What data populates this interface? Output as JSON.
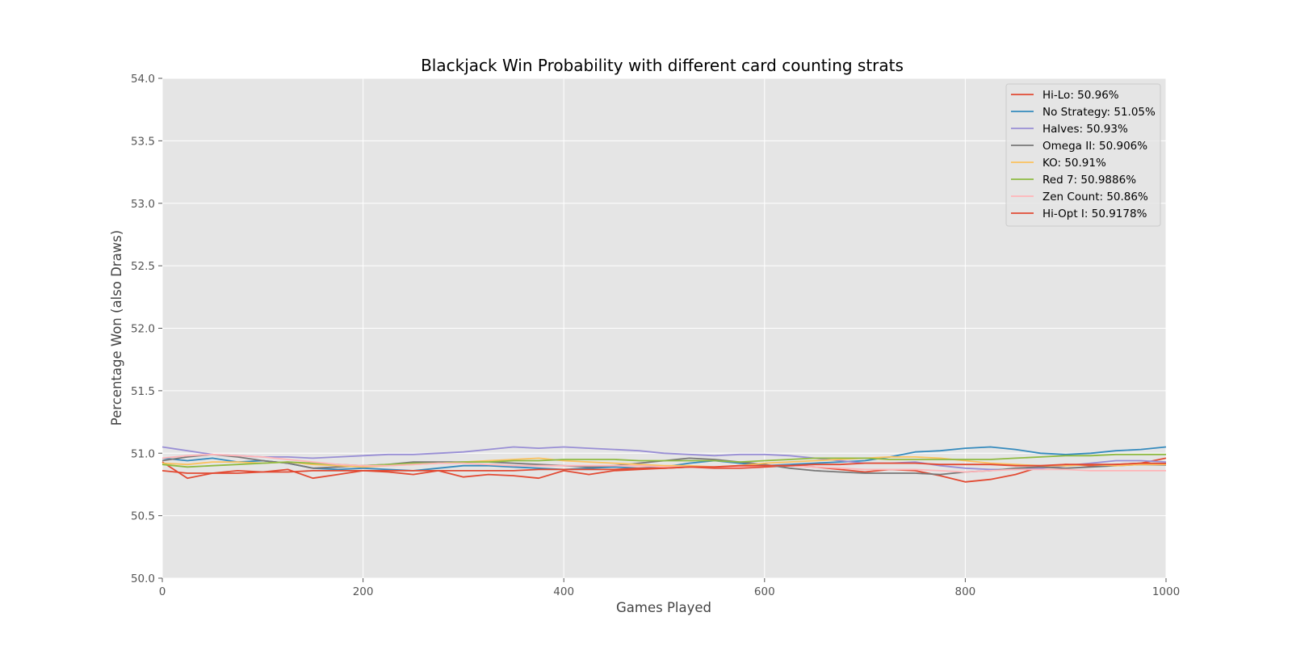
{
  "chart_data": {
    "type": "line",
    "title": "Blackjack Win Probability with different card counting strats",
    "xlabel": "Games Played",
    "ylabel": "Percentage Won (also Draws)",
    "xlim": [
      0,
      1000
    ],
    "ylim": [
      50.0,
      54.0
    ],
    "x_ticks": [
      "0",
      "200",
      "400",
      "600",
      "800",
      "1000"
    ],
    "y_ticks": [
      "50.0",
      "50.5",
      "51.0",
      "51.5",
      "52.0",
      "52.5",
      "53.0",
      "53.5",
      "54.0"
    ],
    "grid": true,
    "legend_position": "top-right",
    "series": [
      {
        "name": "Hi-Lo: 50.96%",
        "color": "#E24A33",
        "x": [
          0,
          25,
          50,
          75,
          100,
          125,
          150,
          175,
          200,
          225,
          250,
          275,
          300,
          325,
          350,
          375,
          400,
          425,
          450,
          475,
          500,
          525,
          550,
          575,
          600,
          625,
          650,
          675,
          700,
          725,
          750,
          775,
          800,
          825,
          850,
          875,
          900,
          925,
          950,
          975,
          1000
        ],
        "values": [
          50.93,
          50.8,
          50.84,
          50.86,
          50.85,
          50.87,
          50.8,
          50.83,
          50.86,
          50.85,
          50.83,
          50.86,
          50.81,
          50.83,
          50.82,
          50.8,
          50.86,
          50.83,
          50.86,
          50.87,
          50.88,
          50.89,
          50.88,
          50.88,
          50.89,
          50.9,
          50.89,
          50.87,
          50.85,
          50.87,
          50.86,
          50.82,
          50.77,
          50.79,
          50.83,
          50.89,
          50.91,
          50.9,
          50.91,
          50.92,
          50.96
        ]
      },
      {
        "name": "No Strategy: 51.05%",
        "color": "#348ABD",
        "x": [
          0,
          25,
          50,
          75,
          100,
          125,
          150,
          175,
          200,
          225,
          250,
          275,
          300,
          325,
          350,
          375,
          400,
          425,
          450,
          475,
          500,
          525,
          550,
          575,
          600,
          625,
          650,
          675,
          700,
          725,
          750,
          775,
          800,
          825,
          850,
          875,
          900,
          925,
          950,
          975,
          1000
        ],
        "values": [
          50.96,
          50.94,
          50.96,
          50.93,
          50.94,
          50.92,
          50.88,
          50.87,
          50.88,
          50.87,
          50.86,
          50.88,
          50.9,
          50.9,
          50.89,
          50.88,
          50.87,
          50.88,
          50.89,
          50.88,
          50.89,
          50.92,
          50.94,
          50.92,
          50.9,
          50.91,
          50.92,
          50.93,
          50.94,
          50.97,
          51.01,
          51.02,
          51.04,
          51.05,
          51.03,
          51.0,
          50.99,
          51.0,
          51.02,
          51.03,
          51.05
        ]
      },
      {
        "name": "Halves: 50.93%",
        "color": "#988ED5",
        "x": [
          0,
          25,
          50,
          75,
          100,
          125,
          150,
          175,
          200,
          225,
          250,
          275,
          300,
          325,
          350,
          375,
          400,
          425,
          450,
          475,
          500,
          525,
          550,
          575,
          600,
          625,
          650,
          675,
          700,
          725,
          750,
          775,
          800,
          825,
          850,
          875,
          900,
          925,
          950,
          975,
          1000
        ],
        "values": [
          51.05,
          51.02,
          50.99,
          50.98,
          50.97,
          50.97,
          50.96,
          50.97,
          50.98,
          50.99,
          50.99,
          51.0,
          51.01,
          51.03,
          51.05,
          51.04,
          51.05,
          51.04,
          51.03,
          51.02,
          51.0,
          50.99,
          50.98,
          50.99,
          50.99,
          50.98,
          50.96,
          50.94,
          50.92,
          50.92,
          50.93,
          50.9,
          50.88,
          50.87,
          50.87,
          50.88,
          50.9,
          50.92,
          50.94,
          50.94,
          50.93
        ]
      },
      {
        "name": "Omega II: 50.906%",
        "color": "#777777",
        "x": [
          0,
          25,
          50,
          75,
          100,
          125,
          150,
          175,
          200,
          225,
          250,
          275,
          300,
          325,
          350,
          375,
          400,
          425,
          450,
          475,
          500,
          525,
          550,
          575,
          600,
          625,
          650,
          675,
          700,
          725,
          750,
          775,
          800,
          825,
          850,
          875,
          900,
          925,
          950,
          975,
          1000
        ],
        "values": [
          50.94,
          50.97,
          50.99,
          50.97,
          50.94,
          50.92,
          50.88,
          50.89,
          50.9,
          50.91,
          50.93,
          50.93,
          50.93,
          50.93,
          50.92,
          50.91,
          50.9,
          50.89,
          50.9,
          50.92,
          50.94,
          50.96,
          50.95,
          50.93,
          50.91,
          50.88,
          50.86,
          50.85,
          50.84,
          50.84,
          50.84,
          50.83,
          50.85,
          50.86,
          50.88,
          50.89,
          50.88,
          50.89,
          50.9,
          50.91,
          50.906
        ]
      },
      {
        "name": "KO: 50.91%",
        "color": "#FBC15E",
        "x": [
          0,
          25,
          50,
          75,
          100,
          125,
          150,
          175,
          200,
          225,
          250,
          275,
          300,
          325,
          350,
          375,
          400,
          425,
          450,
          475,
          500,
          525,
          550,
          575,
          600,
          625,
          650,
          675,
          700,
          725,
          750,
          775,
          800,
          825,
          850,
          875,
          900,
          925,
          950,
          975,
          1000
        ],
        "values": [
          50.92,
          50.91,
          50.93,
          50.93,
          50.92,
          50.93,
          50.91,
          50.9,
          50.89,
          50.9,
          50.91,
          50.92,
          50.93,
          50.94,
          50.95,
          50.96,
          50.94,
          50.93,
          50.92,
          50.91,
          50.9,
          50.9,
          50.89,
          50.9,
          50.92,
          50.93,
          50.94,
          50.95,
          50.96,
          50.97,
          50.97,
          50.96,
          50.94,
          50.92,
          50.91,
          50.9,
          50.9,
          50.91,
          50.9,
          50.91,
          50.91
        ]
      },
      {
        "name": "Red 7: 50.9886%",
        "color": "#8EBA42",
        "x": [
          0,
          25,
          50,
          75,
          100,
          125,
          150,
          175,
          200,
          225,
          250,
          275,
          300,
          325,
          350,
          375,
          400,
          425,
          450,
          475,
          500,
          525,
          550,
          575,
          600,
          625,
          650,
          675,
          700,
          725,
          750,
          775,
          800,
          825,
          850,
          875,
          900,
          925,
          950,
          975,
          1000
        ],
        "values": [
          50.91,
          50.89,
          50.9,
          50.91,
          50.92,
          50.93,
          50.92,
          50.91,
          50.9,
          50.91,
          50.92,
          50.92,
          50.93,
          50.93,
          50.94,
          50.94,
          50.95,
          50.95,
          50.95,
          50.94,
          50.94,
          50.94,
          50.94,
          50.93,
          50.94,
          50.95,
          50.96,
          50.96,
          50.96,
          50.95,
          50.95,
          50.95,
          50.95,
          50.95,
          50.96,
          50.97,
          50.98,
          50.98,
          50.99,
          50.99,
          50.99
        ]
      },
      {
        "name": "Zen Count: 50.86%",
        "color": "#FFB5B8",
        "x": [
          0,
          25,
          50,
          75,
          100,
          125,
          150,
          175,
          200,
          225,
          250,
          275,
          300,
          325,
          350,
          375,
          400,
          425,
          450,
          475,
          500,
          525,
          550,
          575,
          600,
          625,
          650,
          675,
          700,
          725,
          750,
          775,
          800,
          825,
          850,
          875,
          900,
          925,
          950,
          975,
          1000
        ],
        "values": [
          50.96,
          50.98,
          50.99,
          50.98,
          50.97,
          50.95,
          50.93,
          50.91,
          50.9,
          50.9,
          50.91,
          50.92,
          50.92,
          50.91,
          50.9,
          50.9,
          50.9,
          50.9,
          50.9,
          50.9,
          50.89,
          50.89,
          50.89,
          50.89,
          50.9,
          50.9,
          50.89,
          50.88,
          50.87,
          50.87,
          50.87,
          50.86,
          50.85,
          50.86,
          50.87,
          50.87,
          50.87,
          50.86,
          50.86,
          50.86,
          50.86
        ]
      },
      {
        "name": "Hi-Opt I: 50.9178%",
        "color": "#E24A33",
        "x": [
          0,
          25,
          50,
          75,
          100,
          125,
          150,
          175,
          200,
          225,
          250,
          275,
          300,
          325,
          350,
          375,
          400,
          425,
          450,
          475,
          500,
          525,
          550,
          575,
          600,
          625,
          650,
          675,
          700,
          725,
          750,
          775,
          800,
          825,
          850,
          875,
          900,
          925,
          950,
          975,
          1000
        ],
        "values": [
          50.86,
          50.84,
          50.84,
          50.84,
          50.85,
          50.85,
          50.86,
          50.86,
          50.86,
          50.86,
          50.86,
          50.86,
          50.86,
          50.86,
          50.86,
          50.87,
          50.87,
          50.87,
          50.87,
          50.88,
          50.88,
          50.89,
          50.89,
          50.9,
          50.9,
          50.9,
          50.91,
          50.91,
          50.92,
          50.92,
          50.92,
          50.91,
          50.91,
          50.91,
          50.9,
          50.9,
          50.91,
          50.91,
          50.91,
          50.92,
          50.918
        ]
      }
    ]
  }
}
